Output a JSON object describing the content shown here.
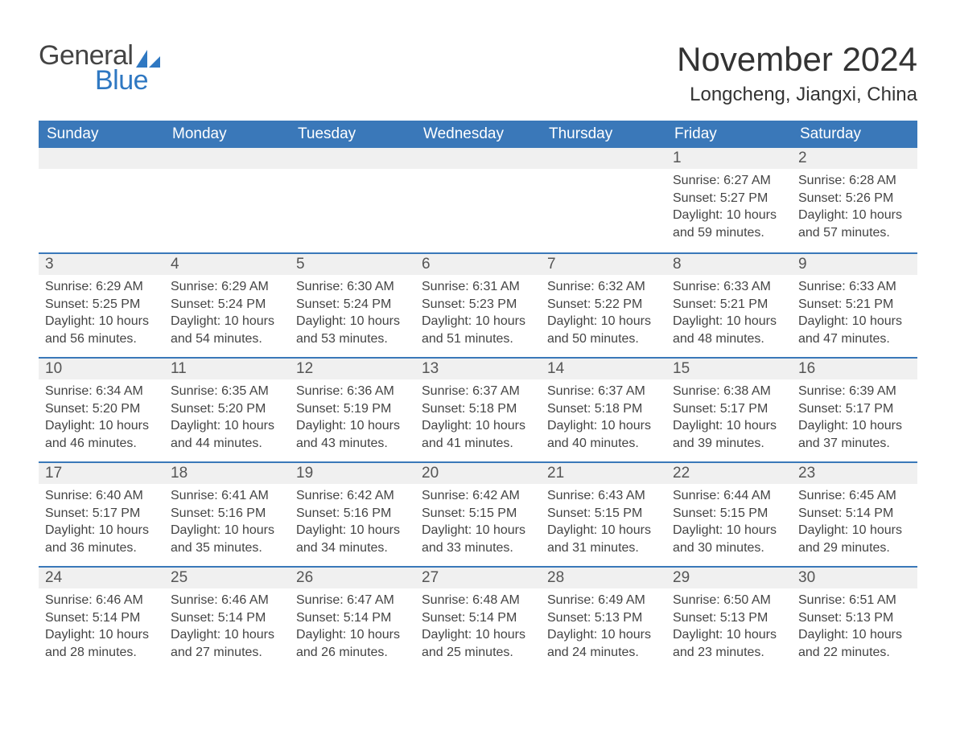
{
  "logo": {
    "text1": "General",
    "text2": "Blue",
    "shape_color": "#2f78c2"
  },
  "title": "November 2024",
  "location": "Longcheng, Jiangxi, China",
  "colors": {
    "header_bg": "#3a78b9",
    "header_text": "#ffffff",
    "daynum_bg": "#f0f0f0",
    "border_top": "#3a78b9",
    "body_text": "#444444",
    "page_bg": "#ffffff"
  },
  "day_headers": [
    "Sunday",
    "Monday",
    "Tuesday",
    "Wednesday",
    "Thursday",
    "Friday",
    "Saturday"
  ],
  "weeks": [
    [
      {
        "empty": true
      },
      {
        "empty": true
      },
      {
        "empty": true
      },
      {
        "empty": true
      },
      {
        "empty": true
      },
      {
        "n": "1",
        "sunrise": "6:27 AM",
        "sunset": "5:27 PM",
        "daylight": "10 hours and 59 minutes."
      },
      {
        "n": "2",
        "sunrise": "6:28 AM",
        "sunset": "5:26 PM",
        "daylight": "10 hours and 57 minutes."
      }
    ],
    [
      {
        "n": "3",
        "sunrise": "6:29 AM",
        "sunset": "5:25 PM",
        "daylight": "10 hours and 56 minutes."
      },
      {
        "n": "4",
        "sunrise": "6:29 AM",
        "sunset": "5:24 PM",
        "daylight": "10 hours and 54 minutes."
      },
      {
        "n": "5",
        "sunrise": "6:30 AM",
        "sunset": "5:24 PM",
        "daylight": "10 hours and 53 minutes."
      },
      {
        "n": "6",
        "sunrise": "6:31 AM",
        "sunset": "5:23 PM",
        "daylight": "10 hours and 51 minutes."
      },
      {
        "n": "7",
        "sunrise": "6:32 AM",
        "sunset": "5:22 PM",
        "daylight": "10 hours and 50 minutes."
      },
      {
        "n": "8",
        "sunrise": "6:33 AM",
        "sunset": "5:21 PM",
        "daylight": "10 hours and 48 minutes."
      },
      {
        "n": "9",
        "sunrise": "6:33 AM",
        "sunset": "5:21 PM",
        "daylight": "10 hours and 47 minutes."
      }
    ],
    [
      {
        "n": "10",
        "sunrise": "6:34 AM",
        "sunset": "5:20 PM",
        "daylight": "10 hours and 46 minutes."
      },
      {
        "n": "11",
        "sunrise": "6:35 AM",
        "sunset": "5:20 PM",
        "daylight": "10 hours and 44 minutes."
      },
      {
        "n": "12",
        "sunrise": "6:36 AM",
        "sunset": "5:19 PM",
        "daylight": "10 hours and 43 minutes."
      },
      {
        "n": "13",
        "sunrise": "6:37 AM",
        "sunset": "5:18 PM",
        "daylight": "10 hours and 41 minutes."
      },
      {
        "n": "14",
        "sunrise": "6:37 AM",
        "sunset": "5:18 PM",
        "daylight": "10 hours and 40 minutes."
      },
      {
        "n": "15",
        "sunrise": "6:38 AM",
        "sunset": "5:17 PM",
        "daylight": "10 hours and 39 minutes."
      },
      {
        "n": "16",
        "sunrise": "6:39 AM",
        "sunset": "5:17 PM",
        "daylight": "10 hours and 37 minutes."
      }
    ],
    [
      {
        "n": "17",
        "sunrise": "6:40 AM",
        "sunset": "5:17 PM",
        "daylight": "10 hours and 36 minutes."
      },
      {
        "n": "18",
        "sunrise": "6:41 AM",
        "sunset": "5:16 PM",
        "daylight": "10 hours and 35 minutes."
      },
      {
        "n": "19",
        "sunrise": "6:42 AM",
        "sunset": "5:16 PM",
        "daylight": "10 hours and 34 minutes."
      },
      {
        "n": "20",
        "sunrise": "6:42 AM",
        "sunset": "5:15 PM",
        "daylight": "10 hours and 33 minutes."
      },
      {
        "n": "21",
        "sunrise": "6:43 AM",
        "sunset": "5:15 PM",
        "daylight": "10 hours and 31 minutes."
      },
      {
        "n": "22",
        "sunrise": "6:44 AM",
        "sunset": "5:15 PM",
        "daylight": "10 hours and 30 minutes."
      },
      {
        "n": "23",
        "sunrise": "6:45 AM",
        "sunset": "5:14 PM",
        "daylight": "10 hours and 29 minutes."
      }
    ],
    [
      {
        "n": "24",
        "sunrise": "6:46 AM",
        "sunset": "5:14 PM",
        "daylight": "10 hours and 28 minutes."
      },
      {
        "n": "25",
        "sunrise": "6:46 AM",
        "sunset": "5:14 PM",
        "daylight": "10 hours and 27 minutes."
      },
      {
        "n": "26",
        "sunrise": "6:47 AM",
        "sunset": "5:14 PM",
        "daylight": "10 hours and 26 minutes."
      },
      {
        "n": "27",
        "sunrise": "6:48 AM",
        "sunset": "5:14 PM",
        "daylight": "10 hours and 25 minutes."
      },
      {
        "n": "28",
        "sunrise": "6:49 AM",
        "sunset": "5:13 PM",
        "daylight": "10 hours and 24 minutes."
      },
      {
        "n": "29",
        "sunrise": "6:50 AM",
        "sunset": "5:13 PM",
        "daylight": "10 hours and 23 minutes."
      },
      {
        "n": "30",
        "sunrise": "6:51 AM",
        "sunset": "5:13 PM",
        "daylight": "10 hours and 22 minutes."
      }
    ]
  ],
  "labels": {
    "sunrise": "Sunrise:",
    "sunset": "Sunset:",
    "daylight": "Daylight:"
  }
}
